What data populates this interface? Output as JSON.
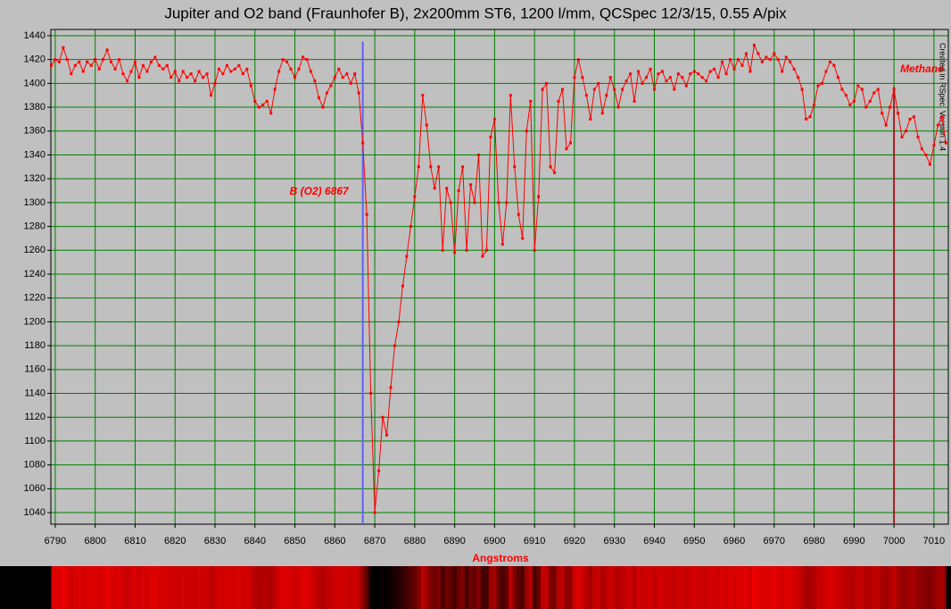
{
  "chart_data": {
    "type": "line",
    "title": "Jupiter and O2 band (Fraunhofer B),  2x200mm ST6, 1200 l/mm, QCSpec 12/3/15, 0.55 A/pix",
    "x_label": "Angstroms",
    "credit": "Created in RSpec. Version 1.4",
    "color": "#ff0000",
    "grid": true,
    "xlim": [
      6788.9,
      7013.6
    ],
    "ylim": [
      1030.3,
      1445.2
    ],
    "xticks": [
      6790,
      6800,
      6810,
      6820,
      6830,
      6840,
      6850,
      6860,
      6870,
      6880,
      6890,
      6900,
      6910,
      6920,
      6930,
      6940,
      6950,
      6960,
      6970,
      6980,
      6990,
      7000,
      7010
    ],
    "yticks": [
      1040,
      1060,
      1080,
      1100,
      1120,
      1140,
      1160,
      1180,
      1200,
      1220,
      1240,
      1260,
      1280,
      1300,
      1320,
      1340,
      1360,
      1380,
      1400,
      1420,
      1440
    ],
    "markers": [
      {
        "label": "B (O2) 6867",
        "x": 6867,
        "top": 1435,
        "color": "#6060ff"
      },
      {
        "label": "Methane",
        "x": 7000,
        "top": 1397,
        "color": "#a02020"
      }
    ],
    "x": [
      6789,
      6790,
      6791,
      6792,
      6793,
      6794,
      6795,
      6796,
      6797,
      6798,
      6799,
      6800,
      6801,
      6802,
      6803,
      6804,
      6805,
      6806,
      6807,
      6808,
      6809,
      6810,
      6811,
      6812,
      6813,
      6814,
      6815,
      6816,
      6817,
      6818,
      6819,
      6820,
      6821,
      6822,
      6823,
      6824,
      6825,
      6826,
      6827,
      6828,
      6829,
      6830,
      6831,
      6832,
      6833,
      6834,
      6835,
      6836,
      6837,
      6838,
      6839,
      6840,
      6841,
      6842,
      6843,
      6844,
      6845,
      6846,
      6847,
      6848,
      6849,
      6850,
      6851,
      6852,
      6853,
      6854,
      6855,
      6856,
      6857,
      6858,
      6859,
      6860,
      6861,
      6862,
      6863,
      6864,
      6865,
      6866,
      6867,
      6868,
      6869,
      6870,
      6871,
      6872,
      6873,
      6874,
      6875,
      6876,
      6877,
      6878,
      6879,
      6880,
      6881,
      6882,
      6883,
      6884,
      6885,
      6886,
      6887,
      6888,
      6889,
      6890,
      6891,
      6892,
      6893,
      6894,
      6895,
      6896,
      6897,
      6898,
      6899,
      6900,
      6901,
      6902,
      6903,
      6904,
      6905,
      6906,
      6907,
      6908,
      6909,
      6910,
      6911,
      6912,
      6913,
      6914,
      6915,
      6916,
      6917,
      6918,
      6919,
      6920,
      6921,
      6922,
      6923,
      6924,
      6925,
      6926,
      6927,
      6928,
      6929,
      6930,
      6931,
      6932,
      6933,
      6934,
      6935,
      6936,
      6937,
      6938,
      6939,
      6940,
      6941,
      6942,
      6943,
      6944,
      6945,
      6946,
      6947,
      6948,
      6949,
      6950,
      6951,
      6952,
      6953,
      6954,
      6955,
      6956,
      6957,
      6958,
      6959,
      6960,
      6961,
      6962,
      6963,
      6964,
      6965,
      6966,
      6967,
      6968,
      6969,
      6970,
      6971,
      6972,
      6973,
      6974,
      6975,
      6976,
      6977,
      6978,
      6979,
      6980,
      6981,
      6982,
      6983,
      6984,
      6985,
      6986,
      6987,
      6988,
      6989,
      6990,
      6991,
      6992,
      6993,
      6994,
      6995,
      6996,
      6997,
      6998,
      6999,
      7000,
      7001,
      7002,
      7003,
      7004,
      7005,
      7006,
      7007,
      7008,
      7009,
      7010,
      7011,
      7012,
      7013
    ],
    "values": [
      1415,
      1420,
      1418,
      1430,
      1420,
      1408,
      1415,
      1418,
      1410,
      1418,
      1415,
      1420,
      1412,
      1420,
      1428,
      1418,
      1412,
      1420,
      1408,
      1402,
      1410,
      1418,
      1405,
      1415,
      1410,
      1418,
      1422,
      1415,
      1412,
      1415,
      1405,
      1410,
      1402,
      1410,
      1405,
      1408,
      1402,
      1410,
      1405,
      1408,
      1390,
      1400,
      1412,
      1408,
      1415,
      1410,
      1412,
      1415,
      1408,
      1412,
      1398,
      1385,
      1380,
      1382,
      1385,
      1375,
      1395,
      1410,
      1420,
      1418,
      1412,
      1405,
      1412,
      1422,
      1420,
      1410,
      1402,
      1388,
      1380,
      1392,
      1398,
      1405,
      1412,
      1405,
      1408,
      1400,
      1408,
      1392,
      1350,
      1290,
      1140,
      1040,
      1075,
      1120,
      1105,
      1145,
      1180,
      1200,
      1230,
      1255,
      1280,
      1305,
      1330,
      1390,
      1365,
      1330,
      1312,
      1330,
      1260,
      1312,
      1300,
      1258,
      1310,
      1330,
      1260,
      1315,
      1300,
      1340,
      1255,
      1260,
      1355,
      1370,
      1300,
      1265,
      1300,
      1390,
      1330,
      1290,
      1270,
      1360,
      1385,
      1260,
      1305,
      1395,
      1400,
      1330,
      1325,
      1385,
      1395,
      1345,
      1350,
      1405,
      1420,
      1405,
      1390,
      1370,
      1395,
      1400,
      1375,
      1390,
      1405,
      1395,
      1380,
      1395,
      1402,
      1408,
      1385,
      1410,
      1400,
      1405,
      1412,
      1395,
      1408,
      1410,
      1402,
      1405,
      1395,
      1408,
      1405,
      1398,
      1408,
      1410,
      1408,
      1405,
      1402,
      1410,
      1412,
      1405,
      1418,
      1408,
      1420,
      1412,
      1420,
      1415,
      1425,
      1410,
      1432,
      1425,
      1418,
      1422,
      1420,
      1425,
      1420,
      1410,
      1422,
      1418,
      1412,
      1405,
      1395,
      1370,
      1372,
      1382,
      1398,
      1400,
      1410,
      1418,
      1415,
      1405,
      1395,
      1390,
      1382,
      1385,
      1398,
      1395,
      1380,
      1385,
      1392,
      1395,
      1375,
      1365,
      1380,
      1395,
      1375,
      1355,
      1360,
      1370,
      1372,
      1355,
      1345,
      1340,
      1332,
      1348,
      1365,
      1372,
      1350
    ]
  }
}
